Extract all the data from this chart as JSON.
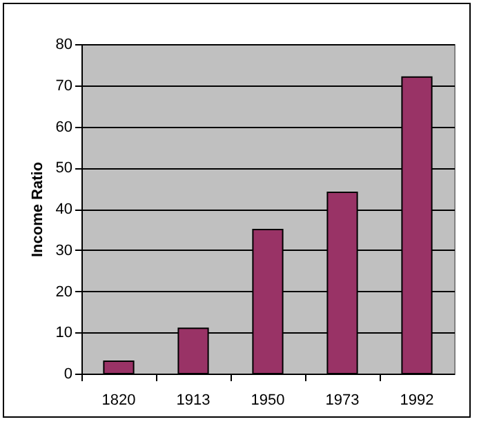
{
  "chart_data": {
    "type": "bar",
    "ylabel": "Income Ratio",
    "categories": [
      "1820",
      "1913",
      "1950",
      "1973",
      "1992"
    ],
    "values": [
      3,
      11,
      35,
      44,
      72
    ],
    "color": "#993366",
    "ylim": [
      0,
      80
    ],
    "yticks": [
      0,
      10,
      20,
      30,
      40,
      50,
      60,
      70,
      80
    ],
    "grid": "y"
  }
}
